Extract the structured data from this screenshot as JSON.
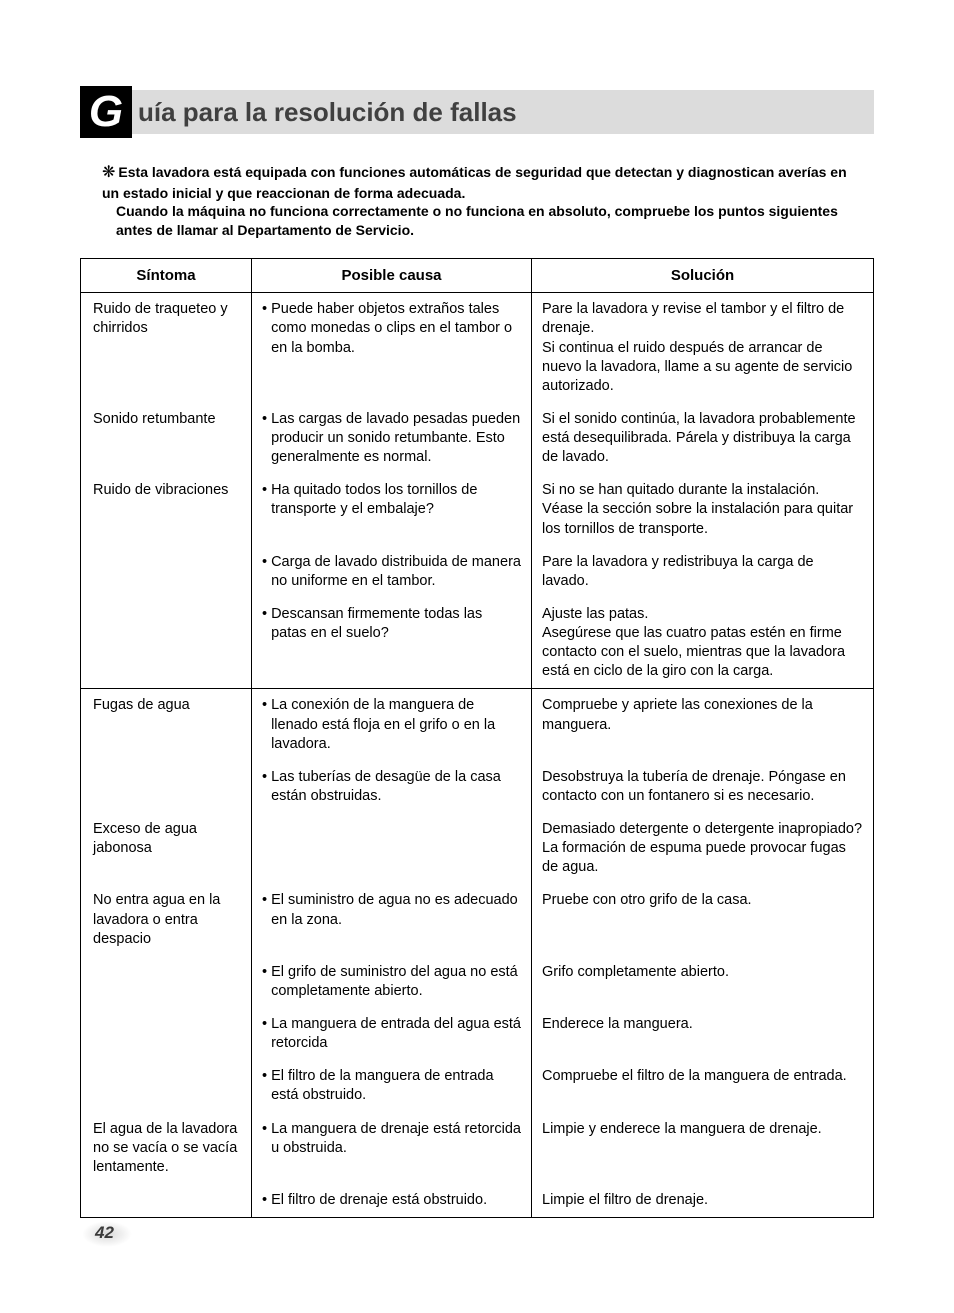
{
  "title": {
    "dropCap": "G",
    "rest": "uía para la resolución de fallas"
  },
  "intro": {
    "star": "❋",
    "bold": "Esta lavadora está equipada con funciones automáticas de seguridad que detectan y diagnostican averías en un estado inicial y que reaccionan de forma adecuada.",
    "normal": "Cuando la máquina no funciona correctamente o no funciona en absoluto, compruebe los puntos siguientes antes de llamar al Departamento de Servicio."
  },
  "headers": {
    "symptom": "Síntoma",
    "cause": "Posible causa",
    "solution": "Solución"
  },
  "rows": [
    {
      "groupStart": true,
      "symptom": "Ruido de traqueteo y chirridos",
      "cause": "Puede haber objetos extraños tales como monedas o clips en el tambor o en la bomba.",
      "solution": "Pare la lavadora y revise el tambor y el filtro de drenaje.\nSi continua el ruido después de arrancar de nuevo la lavadora, llame a su agente de servicio autorizado."
    },
    {
      "groupStart": false,
      "symptom": "Sonido retumbante",
      "cause": "Las cargas de lavado pesadas pueden producir un sonido retumbante. Esto generalmente es normal.",
      "solution": "Si el sonido continúa, la lavadora probablemente está desequilibrada. Párela y distribuya la carga de lavado."
    },
    {
      "groupStart": false,
      "symptom": "Ruido de vibraciones",
      "cause": "Ha quitado todos los tornillos de transporte y el embalaje?",
      "solution": "Si no se han quitado durante la instalación. Véase la sección sobre la instalación para quitar los tornillos de transporte."
    },
    {
      "groupStart": false,
      "symptom": "",
      "cause": "Carga de lavado distribuida de manera no uniforme en el tambor.",
      "solution": "Pare la lavadora y redistribuya la carga de lavado."
    },
    {
      "groupStart": false,
      "symptom": "",
      "cause": "Descansan firmemente todas las patas en el suelo?",
      "solution": "Ajuste las patas.\nAsegúrese que las cuatro patas estén en firme contacto con el suelo, mientras que la lavadora está en ciclo de la giro con la carga."
    },
    {
      "groupStart": true,
      "symptom": "Fugas de agua",
      "cause": "La conexión de la manguera de llenado está floja en el grifo o en la lavadora.",
      "solution": "Compruebe y apriete las conexiones de la manguera."
    },
    {
      "groupStart": false,
      "symptom": "",
      "cause": "Las tuberías de desagüe de la casa están obstruidas.",
      "solution": "Desobstruya la tubería de drenaje. Póngase en contacto con un fontanero si es necesario."
    },
    {
      "groupStart": false,
      "symptom": "Exceso de agua jabonosa",
      "cause": "",
      "solution": "Demasiado detergente o detergente inapropiado? La formación de espuma puede provocar fugas de agua."
    },
    {
      "groupStart": false,
      "symptom": "No entra agua en la lavadora o entra despacio",
      "cause": "El suministro de agua no es adecuado en la zona.",
      "solution": "Pruebe con otro grifo de la casa."
    },
    {
      "groupStart": false,
      "symptom": "",
      "cause": "El grifo de suministro del agua no está completamente abierto.",
      "solution": "Grifo completamente abierto."
    },
    {
      "groupStart": false,
      "symptom": "",
      "cause": "La manguera de entrada del agua está retorcida",
      "solution": "Enderece la manguera."
    },
    {
      "groupStart": false,
      "symptom": "",
      "cause": "El filtro de la manguera de entrada está obstruido.",
      "solution": "Compruebe el filtro de la manguera de entrada."
    },
    {
      "groupStart": false,
      "symptom": "El agua de la lavadora no se vacía o se vacía lentamente.",
      "cause": "La manguera de drenaje está retorcida u obstruida.",
      "solution": "Limpie y enderece la manguera de drenaje."
    },
    {
      "groupStart": false,
      "symptom": "",
      "cause": "El filtro de drenaje está obstruido.",
      "solution": "Limpie el filtro de drenaje."
    }
  ],
  "pageNumber": "42",
  "colors": {
    "titleBg": "#dcdcdc",
    "dropCapBg": "#000000",
    "dropCapFg": "#ffffff",
    "titleFg": "#404040"
  }
}
